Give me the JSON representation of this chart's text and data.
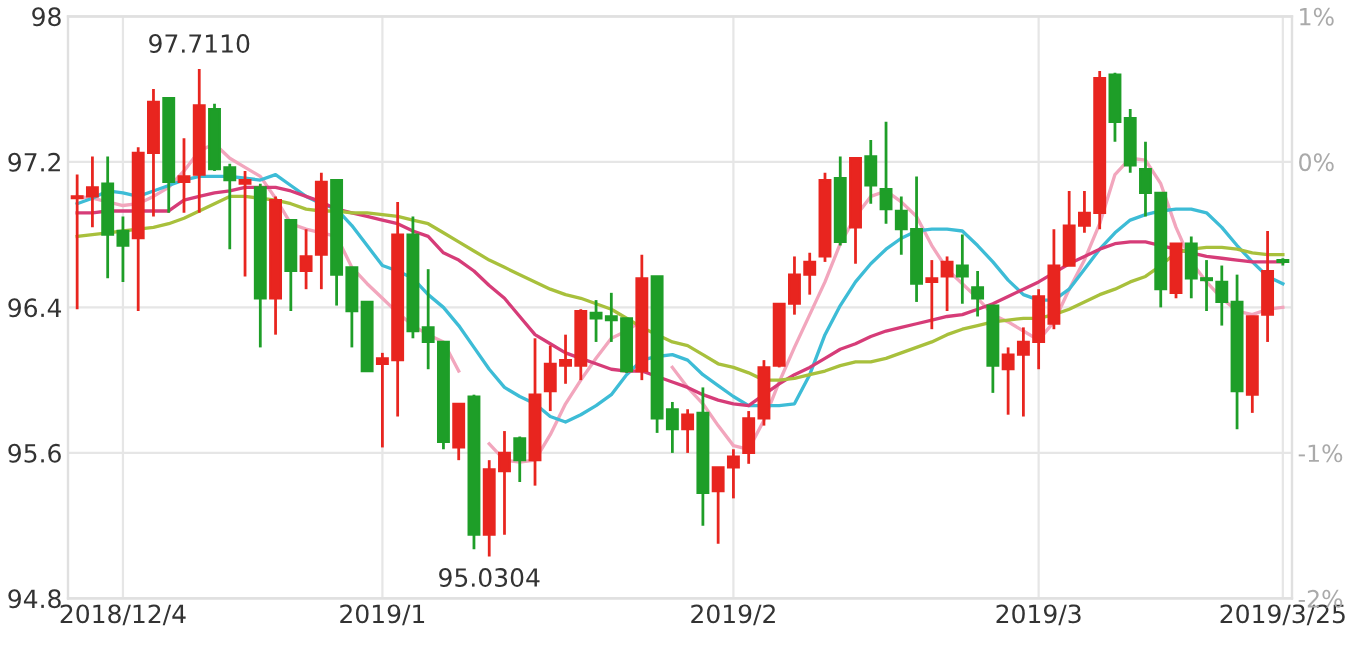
{
  "chart_data": {
    "type": "candlestick",
    "categories": [
      null,
      null,
      null,
      "2018/12/4",
      null,
      null,
      null,
      null,
      null,
      null,
      null,
      null,
      null,
      null,
      null,
      null,
      null,
      null,
      null,
      null,
      "2019/1",
      null,
      null,
      null,
      null,
      null,
      null,
      null,
      null,
      null,
      null,
      null,
      null,
      null,
      null,
      null,
      null,
      null,
      null,
      null,
      null,
      null,
      null,
      "2019/2",
      null,
      null,
      null,
      null,
      null,
      null,
      null,
      null,
      null,
      null,
      null,
      null,
      null,
      null,
      null,
      null,
      null,
      null,
      null,
      "2019/3",
      null,
      null,
      null,
      null,
      null,
      null,
      null,
      null,
      null,
      null,
      null,
      null,
      null,
      null,
      null,
      "2019/3/25"
    ],
    "ohlc": [
      [
        97.0,
        97.13,
        96.39,
        97.01
      ],
      [
        97.01,
        97.23,
        96.84,
        97.06
      ],
      [
        97.08,
        97.23,
        96.56,
        96.8
      ],
      [
        96.82,
        96.9,
        96.54,
        96.74
      ],
      [
        96.78,
        97.28,
        96.38,
        97.25
      ],
      [
        97.25,
        97.6,
        96.9,
        97.53
      ],
      [
        97.55,
        97.55,
        96.92,
        97.09
      ],
      [
        97.09,
        97.33,
        96.92,
        97.12
      ],
      [
        97.13,
        97.711,
        96.92,
        97.51
      ],
      [
        97.49,
        97.52,
        97.15,
        97.16
      ],
      [
        97.17,
        97.19,
        96.72,
        97.1
      ],
      [
        97.08,
        97.15,
        96.57,
        97.1
      ],
      [
        97.06,
        97.08,
        96.18,
        96.45
      ],
      [
        96.45,
        97.01,
        96.25,
        96.99
      ],
      [
        96.88,
        96.88,
        96.38,
        96.6
      ],
      [
        96.6,
        96.83,
        96.5,
        96.68
      ],
      [
        96.69,
        97.14,
        96.5,
        97.09
      ],
      [
        97.1,
        97.1,
        96.41,
        96.58
      ],
      [
        96.62,
        96.62,
        96.18,
        96.38
      ],
      [
        96.43,
        96.43,
        96.05,
        96.05
      ],
      [
        96.09,
        96.15,
        95.63,
        96.12
      ],
      [
        96.11,
        96.98,
        95.8,
        96.8
      ],
      [
        96.8,
        96.9,
        96.23,
        96.27
      ],
      [
        96.29,
        96.61,
        96.06,
        96.21
      ],
      [
        96.21,
        96.21,
        95.62,
        95.66
      ],
      [
        95.63,
        95.87,
        95.56,
        95.87
      ],
      [
        95.91,
        95.92,
        95.07,
        95.15
      ],
      [
        95.15,
        95.56,
        95.0304,
        95.51
      ],
      [
        95.5,
        95.72,
        95.15,
        95.6
      ],
      [
        95.68,
        95.69,
        95.44,
        95.56
      ],
      [
        95.56,
        96.23,
        95.42,
        95.92
      ],
      [
        95.94,
        96.19,
        95.83,
        96.09
      ],
      [
        96.08,
        96.25,
        95.98,
        96.11
      ],
      [
        96.08,
        96.39,
        96.0,
        96.38
      ],
      [
        96.37,
        96.44,
        96.21,
        96.34
      ],
      [
        96.35,
        96.48,
        96.21,
        96.33
      ],
      [
        96.34,
        96.34,
        96.04,
        96.05
      ],
      [
        96.05,
        96.69,
        96.0,
        96.56
      ],
      [
        96.57,
        96.57,
        95.71,
        95.79
      ],
      [
        95.84,
        95.88,
        95.6,
        95.73
      ],
      [
        95.73,
        95.84,
        95.6,
        95.81
      ],
      [
        95.82,
        95.96,
        95.2,
        95.38
      ],
      [
        95.39,
        95.52,
        95.1,
        95.52
      ],
      [
        95.52,
        95.62,
        95.35,
        95.58
      ],
      [
        95.6,
        95.83,
        95.54,
        95.79
      ],
      [
        95.79,
        96.11,
        95.75,
        96.07
      ],
      [
        96.08,
        96.42,
        96.07,
        96.42
      ],
      [
        96.42,
        96.68,
        96.36,
        96.58
      ],
      [
        96.58,
        96.7,
        96.47,
        96.65
      ],
      [
        96.68,
        97.14,
        96.65,
        97.1
      ],
      [
        97.11,
        97.23,
        96.74,
        96.76
      ],
      [
        96.84,
        97.22,
        96.64,
        97.22
      ],
      [
        97.23,
        97.32,
        96.97,
        97.07
      ],
      [
        97.05,
        97.42,
        96.86,
        96.94
      ],
      [
        96.93,
        97.01,
        96.69,
        96.83
      ],
      [
        96.83,
        97.12,
        96.43,
        96.53
      ],
      [
        96.54,
        96.66,
        96.28,
        96.56
      ],
      [
        96.57,
        96.68,
        96.38,
        96.65
      ],
      [
        96.63,
        96.8,
        96.42,
        96.57
      ],
      [
        96.51,
        96.6,
        96.35,
        96.45
      ],
      [
        96.41,
        96.41,
        95.93,
        96.08
      ],
      [
        96.06,
        96.18,
        95.81,
        96.14
      ],
      [
        96.14,
        96.29,
        95.8,
        96.21
      ],
      [
        96.21,
        96.5,
        96.06,
        96.46
      ],
      [
        96.31,
        96.83,
        96.28,
        96.63
      ],
      [
        96.63,
        97.04,
        96.63,
        96.85
      ],
      [
        96.85,
        97.04,
        96.81,
        96.92
      ],
      [
        96.92,
        97.7,
        96.83,
        97.66
      ],
      [
        97.68,
        97.69,
        97.31,
        97.42
      ],
      [
        97.44,
        97.49,
        97.14,
        97.18
      ],
      [
        97.16,
        97.31,
        96.9,
        97.03
      ],
      [
        97.03,
        97.03,
        96.4,
        96.5
      ],
      [
        96.48,
        96.75,
        96.45,
        96.75
      ],
      [
        96.75,
        96.79,
        96.45,
        96.56
      ],
      [
        96.56,
        96.66,
        96.38,
        96.55
      ],
      [
        96.54,
        96.63,
        96.3,
        96.43
      ],
      [
        96.43,
        96.58,
        95.73,
        95.94
      ],
      [
        95.92,
        96.35,
        95.82,
        96.35
      ],
      [
        96.36,
        96.82,
        96.21,
        96.6
      ],
      [
        96.66,
        96.67,
        96.63,
        96.65
      ]
    ],
    "colors": [
      "#e8251f",
      "#e8251f",
      "#1e9e28",
      "#1e9e28",
      "#e8251f",
      "#e8251f",
      "#1e9e28",
      "#e8251f",
      "#e8251f",
      "#1e9e28",
      "#1e9e28",
      "#e8251f",
      "#1e9e28",
      "#e8251f",
      "#1e9e28",
      "#e8251f",
      "#e8251f",
      "#1e9e28",
      "#1e9e28",
      "#1e9e28",
      "#e8251f",
      "#e8251f",
      "#1e9e28",
      "#1e9e28",
      "#1e9e28",
      "#e8251f",
      "#1e9e28",
      "#e8251f",
      "#e8251f",
      "#1e9e28",
      "#e8251f",
      "#e8251f",
      "#e8251f",
      "#e8251f",
      "#1e9e28",
      "#1e9e28",
      "#1e9e28",
      "#e8251f",
      "#1e9e28",
      "#1e9e28",
      "#e8251f",
      "#1e9e28",
      "#e8251f",
      "#e8251f",
      "#e8251f",
      "#e8251f",
      "#e8251f",
      "#e8251f",
      "#e8251f",
      "#e8251f",
      "#1e9e28",
      "#e8251f",
      "#1e9e28",
      "#1e9e28",
      "#1e9e28",
      "#1e9e28",
      "#e8251f",
      "#e8251f",
      "#1e9e28",
      "#1e9e28",
      "#1e9e28",
      "#e8251f",
      "#e8251f",
      "#e8251f",
      "#e8251f",
      "#e8251f",
      "#e8251f",
      "#e8251f",
      "#1e9e28",
      "#1e9e28",
      "#1e9e28",
      "#1e9e28",
      "#e8251f",
      "#1e9e28",
      "#1e9e28",
      "#1e9e28",
      "#1e9e28",
      "#e8251f",
      "#e8251f",
      "#1e9e28"
    ],
    "series": [
      {
        "type": "line",
        "color": "#f2a6bd",
        "values": [
          97.01,
          97.0,
          96.98,
          96.96,
          96.97,
          97.01,
          97.06,
          97.15,
          97.26,
          97.3,
          97.22,
          97.17,
          97.12,
          97.0,
          96.86,
          96.83,
          96.81,
          96.79,
          96.62,
          96.53,
          96.45,
          96.37,
          96.3,
          96.25,
          96.21,
          96.05,
          null,
          95.65,
          95.56,
          95.55,
          95.56,
          95.7,
          95.87,
          96.0,
          96.12,
          96.23,
          96.27,
          96.33,
          null,
          96.07,
          95.96,
          95.87,
          95.75,
          95.64,
          95.62,
          95.78,
          95.99,
          96.18,
          96.36,
          96.54,
          96.75,
          96.9,
          97.01,
          97.04,
          96.98,
          96.9,
          96.74,
          96.61,
          96.53,
          96.45,
          96.36,
          96.32,
          96.27,
          96.22,
          96.32,
          96.5,
          96.66,
          96.86,
          97.13,
          97.22,
          97.21,
          97.08,
          96.84,
          96.65,
          96.54,
          96.45,
          96.38,
          96.36,
          96.39,
          96.4
        ]
      },
      {
        "type": "line",
        "color": "#3dbcd6",
        "values": [
          96.97,
          97.0,
          97.04,
          97.03,
          97.01,
          97.04,
          97.07,
          97.1,
          97.12,
          97.12,
          97.12,
          97.11,
          97.1,
          97.13,
          97.07,
          97.01,
          96.97,
          96.94,
          96.85,
          96.74,
          96.63,
          96.6,
          96.56,
          96.47,
          96.4,
          96.3,
          96.18,
          96.06,
          95.96,
          95.91,
          95.87,
          95.8,
          95.77,
          95.81,
          95.86,
          95.92,
          96.03,
          96.11,
          96.13,
          96.14,
          96.11,
          96.03,
          95.97,
          95.91,
          95.86,
          95.86,
          95.86,
          95.87,
          96.03,
          96.25,
          96.41,
          96.54,
          96.64,
          96.72,
          96.78,
          96.82,
          96.83,
          96.83,
          96.82,
          96.74,
          96.65,
          96.55,
          96.47,
          96.44,
          96.44,
          96.5,
          96.61,
          96.72,
          96.81,
          96.88,
          96.91,
          96.93,
          96.94,
          96.94,
          96.92,
          96.84,
          96.74,
          96.65,
          96.57,
          96.53
        ]
      },
      {
        "type": "line",
        "color": "#d63c78",
        "values": [
          96.92,
          96.92,
          96.93,
          96.93,
          96.93,
          96.93,
          96.93,
          96.99,
          97.01,
          97.03,
          97.04,
          97.06,
          97.06,
          97.06,
          97.04,
          97.01,
          96.98,
          96.94,
          96.92,
          96.9,
          96.88,
          96.86,
          96.82,
          96.79,
          96.7,
          96.66,
          96.6,
          96.52,
          96.45,
          96.35,
          96.25,
          96.2,
          96.15,
          96.12,
          96.09,
          96.06,
          96.05,
          96.05,
          96.02,
          95.99,
          95.96,
          95.92,
          95.89,
          95.87,
          95.86,
          95.92,
          95.98,
          96.03,
          96.07,
          96.12,
          96.17,
          96.2,
          96.24,
          96.27,
          96.29,
          96.31,
          96.33,
          96.35,
          96.36,
          96.39,
          96.42,
          96.46,
          96.5,
          96.54,
          96.59,
          96.64,
          96.68,
          96.72,
          96.75,
          96.76,
          96.76,
          96.74,
          96.72,
          96.7,
          96.68,
          96.67,
          96.66,
          96.65,
          96.65,
          96.65
        ]
      },
      {
        "type": "line",
        "color": "#a8c03c",
        "values": [
          96.79,
          96.8,
          96.81,
          96.82,
          96.83,
          96.84,
          96.86,
          96.89,
          96.93,
          96.97,
          97.01,
          97.01,
          97.0,
          96.99,
          96.97,
          96.94,
          96.93,
          96.93,
          96.92,
          96.92,
          96.91,
          96.9,
          96.88,
          96.86,
          96.81,
          96.76,
          96.71,
          96.66,
          96.62,
          96.58,
          96.54,
          96.5,
          96.47,
          96.45,
          96.42,
          96.39,
          96.34,
          96.29,
          96.25,
          96.21,
          96.19,
          96.14,
          96.09,
          96.07,
          96.04,
          96.0,
          96.0,
          96.01,
          96.03,
          96.05,
          96.08,
          96.1,
          96.1,
          96.12,
          96.15,
          96.18,
          96.21,
          96.25,
          96.28,
          96.3,
          96.32,
          96.33,
          96.34,
          96.34,
          96.36,
          96.39,
          96.43,
          96.47,
          96.5,
          96.54,
          96.57,
          96.63,
          96.7,
          96.72,
          96.73,
          96.73,
          96.72,
          96.7,
          96.69,
          96.69
        ]
      }
    ],
    "ylim": [
      94.8,
      98
    ],
    "yticks": [
      94.8,
      95.6,
      96.4,
      97.2,
      98
    ],
    "y2lim": [
      -2.0,
      1.2
    ],
    "y2ticks": [
      {
        "value": -2.0,
        "label": "-2%"
      },
      {
        "value": -1.2,
        "label": "-1%"
      },
      {
        "value": -0.4,
        "label": null
      },
      {
        "value": 0.4,
        "label": "0%"
      },
      {
        "value": 1.2,
        "label": "1%"
      }
    ],
    "grid": true,
    "annotations": [
      {
        "text": "97.7110",
        "y": 97.711
      },
      {
        "text": "95.0304",
        "y": 95.0304
      }
    ]
  }
}
